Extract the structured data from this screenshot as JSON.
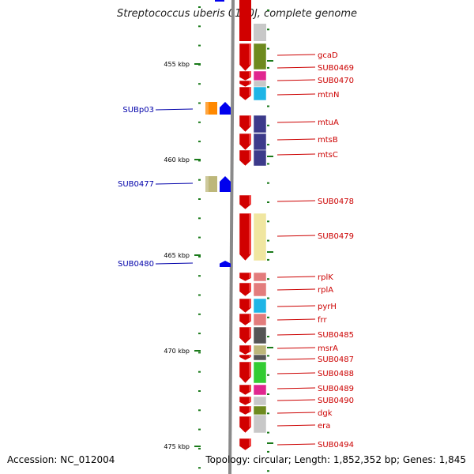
{
  "title": "Streptococcus uberis 0140J, complete genome",
  "footer": {
    "accession": "Accession: NC_012004",
    "topology": "Topology: circular; Length: 1,852,352 bp; Genes: 1,845"
  },
  "scale": {
    "unit_label": "kbp",
    "major_ticks": [
      "455 kbp",
      "460 kbp",
      "465 kbp",
      "470 kbp",
      "475 kbp"
    ]
  },
  "genes_right": [
    {
      "label": "gcaD",
      "color": "#d10000",
      "cog_color": "#6e8a1e"
    },
    {
      "label": "SUB0469",
      "color": "#d10000",
      "cog_color": "#e0268f"
    },
    {
      "label": "SUB0470",
      "color": "#d10000",
      "cog_color": "#c8c8c8"
    },
    {
      "label": "mtnN",
      "color": "#d10000",
      "cog_color": "#1fb5e6"
    },
    {
      "label": "mtuA",
      "color": "#d10000",
      "cog_color": "#3c3a8a"
    },
    {
      "label": "mtsB",
      "color": "#d10000",
      "cog_color": "#3c3a8a"
    },
    {
      "label": "mtsC",
      "color": "#d10000",
      "cog_color": "#3c3a8a"
    },
    {
      "label": "SUB0478",
      "color": "#d10000",
      "cog_color": ""
    },
    {
      "label": "SUB0479",
      "color": "#d10000",
      "cog_color": "#f0e6a0"
    },
    {
      "label": "rplK",
      "color": "#d10000",
      "cog_color": "#e37c7c"
    },
    {
      "label": "rplA",
      "color": "#d10000",
      "cog_color": "#e37c7c"
    },
    {
      "label": "pyrH",
      "color": "#d10000",
      "cog_color": "#1fb5e6"
    },
    {
      "label": "frr",
      "color": "#d10000",
      "cog_color": "#e37c7c"
    },
    {
      "label": "SUB0485",
      "color": "#d10000",
      "cog_color": "#555555"
    },
    {
      "label": "msrA",
      "color": "#d10000",
      "cog_color": "#bdb77a"
    },
    {
      "label": "SUB0487",
      "color": "#d10000",
      "cog_color": "#555555"
    },
    {
      "label": "SUB0488",
      "color": "#d10000",
      "cog_color": "#33cc33"
    },
    {
      "label": "SUB0489",
      "color": "#d10000",
      "cog_color": "#e0268f"
    },
    {
      "label": "SUB0490",
      "color": "#d10000",
      "cog_color": "#c8c8c8"
    },
    {
      "label": "dgk",
      "color": "#d10000",
      "cog_color": "#6e8a1e"
    },
    {
      "label": "era",
      "color": "#d10000",
      "cog_color": "#c8c8c8"
    },
    {
      "label": "SUB0494",
      "color": "#d10000",
      "cog_color": ""
    }
  ],
  "genes_left": [
    {
      "label": "SUBp03",
      "color": "#0000ee",
      "cog_color": "#ff8800"
    },
    {
      "label": "SUB0477",
      "color": "#0000ee",
      "cog_color": "#bdb77a"
    },
    {
      "label": "SUB0480",
      "color": "#0000ee",
      "cog_color": ""
    }
  ],
  "colors": {
    "forward_label": "#cc0000",
    "reverse_label": "#0000aa",
    "backbone": "#8a8a8a",
    "tick": "#1a7a1a"
  }
}
